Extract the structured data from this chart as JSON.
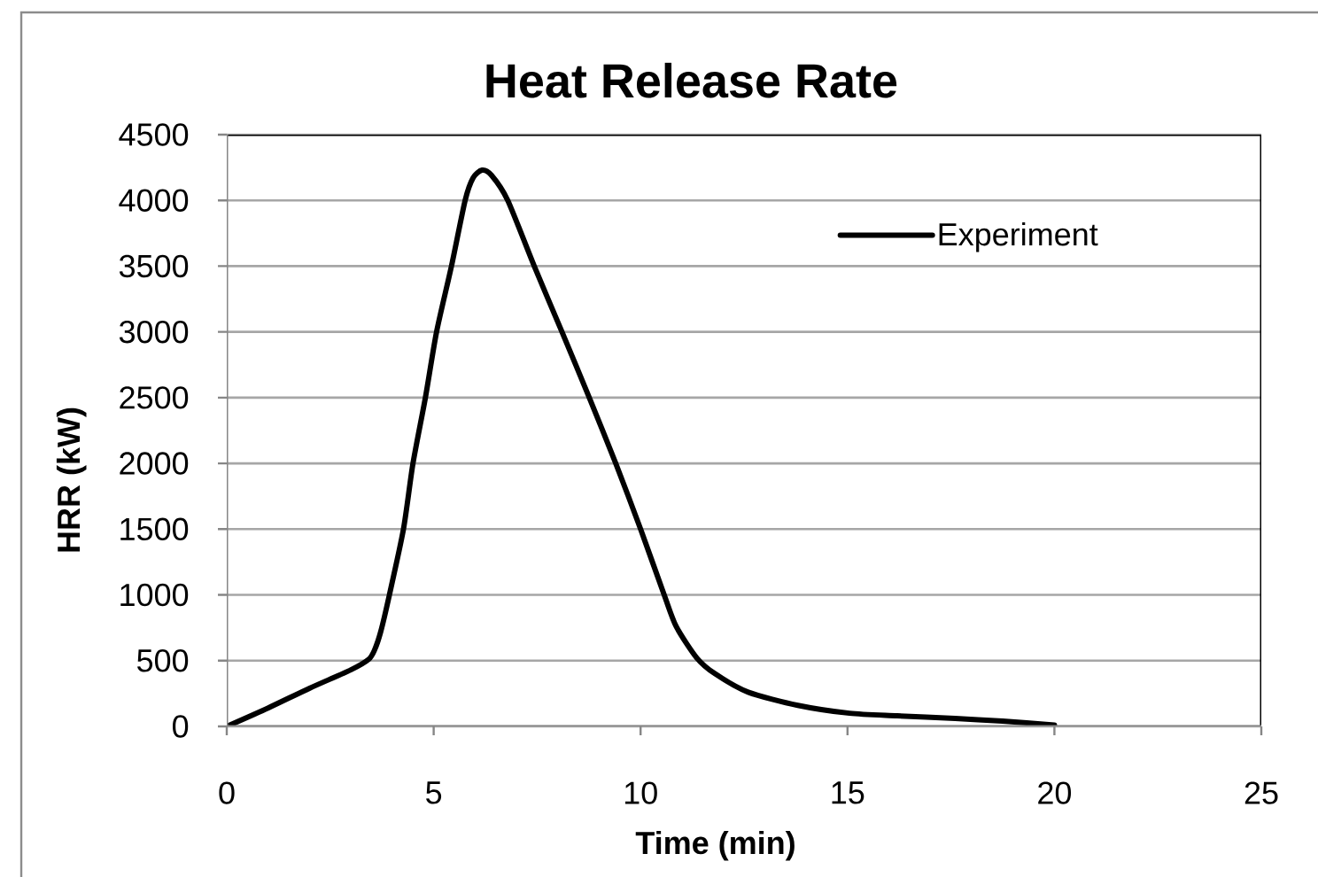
{
  "chart_data": {
    "type": "line",
    "title": "Heat Release Rate",
    "xlabel": "Time (min)",
    "ylabel": "HRR (kW)",
    "series": [
      {
        "name": "Experiment",
        "color": "#000000",
        "line_style": "solid",
        "x": [
          0,
          1,
          2,
          3,
          3.43,
          3.57,
          3.72,
          3.93,
          4.27,
          4.5,
          4.8,
          5.07,
          5.43,
          5.76,
          5.95,
          6.17,
          6.4,
          6.79,
          7.43,
          8.1,
          8.76,
          9.4,
          10.0,
          10.57,
          10.86,
          11.36,
          11.8,
          12.6,
          13.8,
          15.05,
          16.2,
          17.6,
          18.75,
          20
        ],
        "values": [
          0,
          140,
          290,
          430,
          510,
          580,
          720,
          1000,
          1500,
          2000,
          2500,
          3000,
          3500,
          4000,
          4170,
          4230,
          4190,
          4000,
          3500,
          3000,
          2500,
          2000,
          1500,
          1000,
          760,
          520,
          400,
          260,
          160,
          100,
          80,
          60,
          40,
          10
        ]
      }
    ],
    "xlim": [
      0,
      25
    ],
    "xticks": [
      0,
      5,
      10,
      15,
      20,
      25
    ],
    "ylim": [
      0,
      4500
    ],
    "yticks": [
      0,
      500,
      1000,
      1500,
      2000,
      2500,
      3000,
      3500,
      4000,
      4500
    ],
    "grid": "y",
    "legend": "top right"
  }
}
